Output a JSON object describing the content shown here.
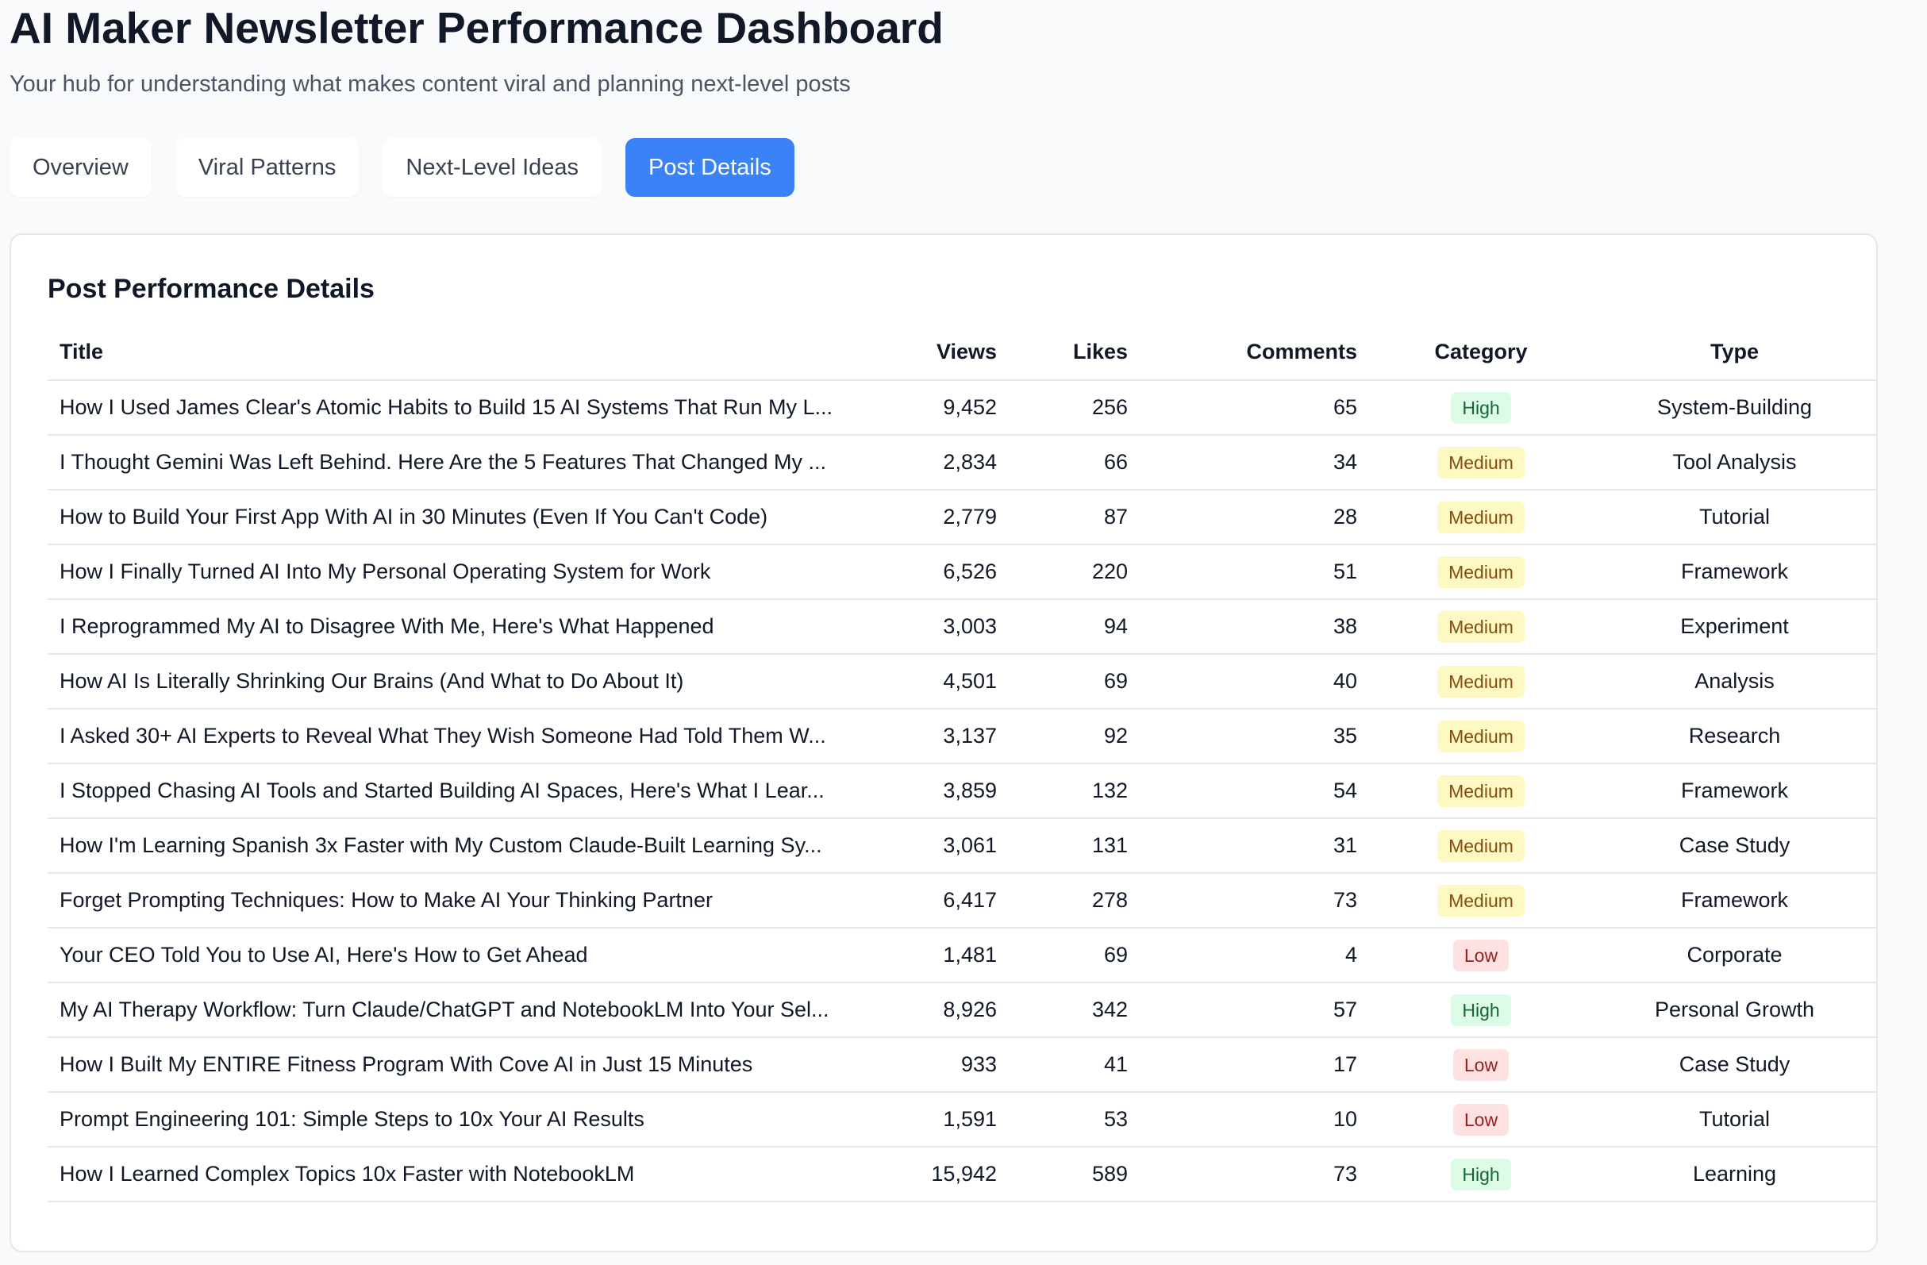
{
  "header": {
    "title": "AI Maker Newsletter Performance Dashboard",
    "subtitle": "Your hub for understanding what makes content viral and planning next-level posts"
  },
  "tabs": [
    {
      "label": "Overview",
      "active": false
    },
    {
      "label": "Viral Patterns",
      "active": false
    },
    {
      "label": "Next-Level Ideas",
      "active": false
    },
    {
      "label": "Post Details",
      "active": true
    }
  ],
  "colors": {
    "accent": "#3b82f6",
    "high_bg": "#dcfce7",
    "high_text": "#166534",
    "medium_bg": "#fef9c3",
    "medium_text": "#854d0e",
    "low_bg": "#fee2e2",
    "low_text": "#991b1b"
  },
  "details": {
    "title": "Post Performance Details",
    "columns": {
      "title": "Title",
      "views": "Views",
      "likes": "Likes",
      "comments": "Comments",
      "category": "Category",
      "type": "Type"
    },
    "rows": [
      {
        "title": "How I Used James Clear's Atomic Habits to Build 15 AI Systems That Run My L...",
        "views": "9,452",
        "likes": "256",
        "comments": "65",
        "category": "High",
        "type": "System-Building"
      },
      {
        "title": "I Thought Gemini Was Left Behind. Here Are the 5 Features That Changed My ...",
        "views": "2,834",
        "likes": "66",
        "comments": "34",
        "category": "Medium",
        "type": "Tool Analysis"
      },
      {
        "title": "How to Build Your First App With AI in 30 Minutes (Even If You Can't Code)",
        "views": "2,779",
        "likes": "87",
        "comments": "28",
        "category": "Medium",
        "type": "Tutorial"
      },
      {
        "title": "How I Finally Turned AI Into My Personal Operating System for Work",
        "views": "6,526",
        "likes": "220",
        "comments": "51",
        "category": "Medium",
        "type": "Framework"
      },
      {
        "title": "I Reprogrammed My AI to Disagree With Me, Here's What Happened",
        "views": "3,003",
        "likes": "94",
        "comments": "38",
        "category": "Medium",
        "type": "Experiment"
      },
      {
        "title": "How AI Is Literally Shrinking Our Brains (And What to Do About It)",
        "views": "4,501",
        "likes": "69",
        "comments": "40",
        "category": "Medium",
        "type": "Analysis"
      },
      {
        "title": "I Asked 30+ AI Experts to Reveal What They Wish Someone Had Told Them W...",
        "views": "3,137",
        "likes": "92",
        "comments": "35",
        "category": "Medium",
        "type": "Research"
      },
      {
        "title": "I Stopped Chasing AI Tools and Started Building AI Spaces, Here's What I Lear...",
        "views": "3,859",
        "likes": "132",
        "comments": "54",
        "category": "Medium",
        "type": "Framework"
      },
      {
        "title": "How I'm Learning Spanish 3x Faster with My Custom Claude-Built Learning Sy...",
        "views": "3,061",
        "likes": "131",
        "comments": "31",
        "category": "Medium",
        "type": "Case Study"
      },
      {
        "title": "Forget Prompting Techniques: How to Make AI Your Thinking Partner",
        "views": "6,417",
        "likes": "278",
        "comments": "73",
        "category": "Medium",
        "type": "Framework"
      },
      {
        "title": "Your CEO Told You to Use AI, Here's How to Get Ahead",
        "views": "1,481",
        "likes": "69",
        "comments": "4",
        "category": "Low",
        "type": "Corporate"
      },
      {
        "title": "My AI Therapy Workflow: Turn Claude/ChatGPT and NotebookLM Into Your Sel...",
        "views": "8,926",
        "likes": "342",
        "comments": "57",
        "category": "High",
        "type": "Personal Growth"
      },
      {
        "title": "How I Built My ENTIRE Fitness Program With Cove AI in Just 15 Minutes",
        "views": "933",
        "likes": "41",
        "comments": "17",
        "category": "Low",
        "type": "Case Study"
      },
      {
        "title": "Prompt Engineering 101: Simple Steps to 10x Your AI Results",
        "views": "1,591",
        "likes": "53",
        "comments": "10",
        "category": "Low",
        "type": "Tutorial"
      },
      {
        "title": "How I Learned Complex Topics 10x Faster with NotebookLM",
        "views": "15,942",
        "likes": "589",
        "comments": "73",
        "category": "High",
        "type": "Learning"
      }
    ]
  }
}
